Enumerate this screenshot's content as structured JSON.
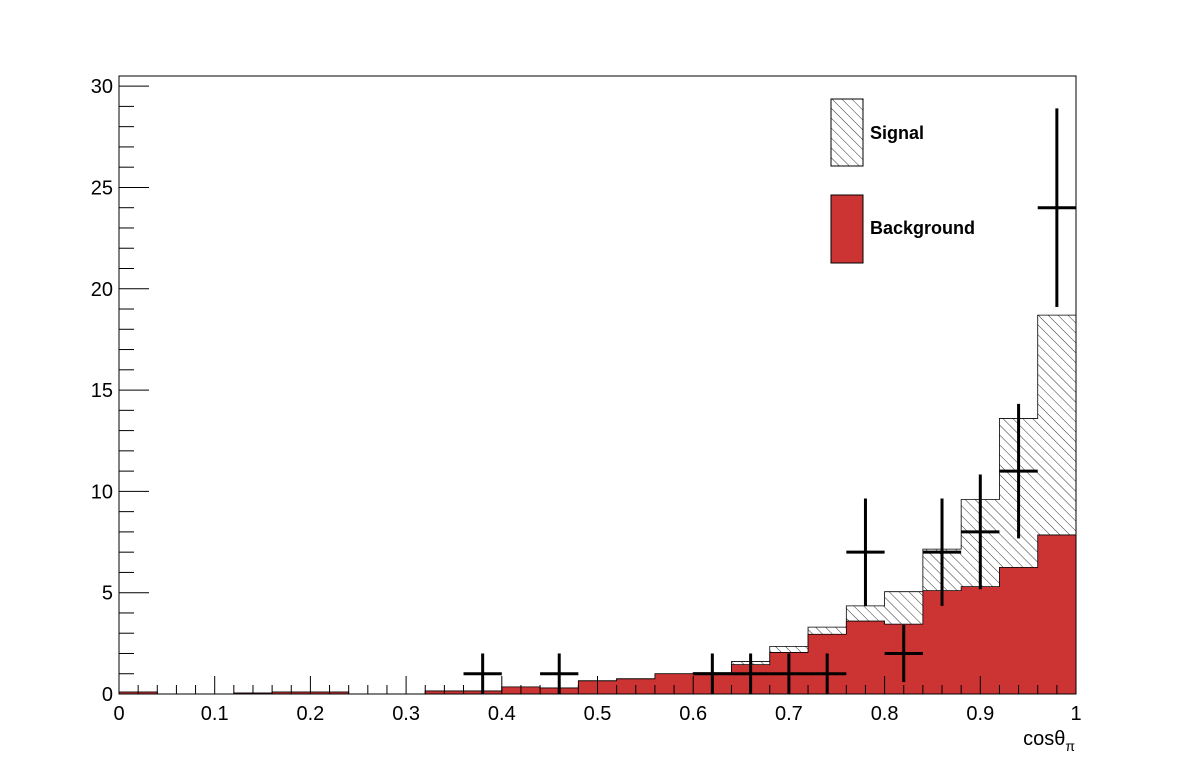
{
  "chart_data": {
    "type": "bar",
    "x_bin_edges": [
      0,
      0.04,
      0.08,
      0.12,
      0.16,
      0.2,
      0.24,
      0.28,
      0.32,
      0.36,
      0.4,
      0.44,
      0.48,
      0.52,
      0.56,
      0.6,
      0.64,
      0.68,
      0.72,
      0.76,
      0.8,
      0.84,
      0.88,
      0.92,
      0.96,
      1.0
    ],
    "series": [
      {
        "name": "Background",
        "style": "filled",
        "values": [
          0.1,
          0,
          0,
          0.05,
          0.1,
          0.1,
          0,
          0,
          0.15,
          0.15,
          0.35,
          0.3,
          0.65,
          0.75,
          1.0,
          1.05,
          1.45,
          2.05,
          2.95,
          3.6,
          3.45,
          5.1,
          5.3,
          6.25,
          7.85
        ]
      },
      {
        "name": "Signal",
        "style": "hatched",
        "values": [
          0,
          0,
          0,
          0,
          0,
          0,
          0,
          0,
          0,
          0,
          0,
          0,
          0,
          0,
          0,
          0,
          0.15,
          0.3,
          0.35,
          0.75,
          1.6,
          2.05,
          4.3,
          7.35,
          10.85
        ]
      }
    ],
    "data_points": [
      {
        "x": 0.38,
        "y": 1,
        "y_err": 1,
        "x_err": 0.02
      },
      {
        "x": 0.46,
        "y": 1,
        "y_err": 1,
        "x_err": 0.02
      },
      {
        "x": 0.62,
        "y": 1,
        "y_err": 1,
        "x_err": 0.02
      },
      {
        "x": 0.66,
        "y": 1,
        "y_err": 1,
        "x_err": 0.02
      },
      {
        "x": 0.7,
        "y": 1,
        "y_err": 1,
        "x_err": 0.02
      },
      {
        "x": 0.74,
        "y": 1,
        "y_err": 1,
        "x_err": 0.02
      },
      {
        "x": 0.78,
        "y": 7,
        "y_err": 2.65,
        "x_err": 0.02
      },
      {
        "x": 0.82,
        "y": 2,
        "y_err": 1.41,
        "x_err": 0.02
      },
      {
        "x": 0.86,
        "y": 7,
        "y_err": 2.65,
        "x_err": 0.02
      },
      {
        "x": 0.9,
        "y": 8,
        "y_err": 2.83,
        "x_err": 0.02
      },
      {
        "x": 0.94,
        "y": 11,
        "y_err": 3.32,
        "x_err": 0.02
      },
      {
        "x": 0.98,
        "y": 24,
        "y_err": 4.9,
        "x_err": 0.02
      }
    ],
    "xlim": [
      0,
      1
    ],
    "ylim": [
      0,
      30.5
    ],
    "x_ticks": [
      "0",
      "0.1",
      "0.2",
      "0.3",
      "0.4",
      "0.5",
      "0.6",
      "0.7",
      "0.8",
      "0.9",
      "1"
    ],
    "y_ticks": [
      "0",
      "5",
      "10",
      "15",
      "20",
      "25",
      "30"
    ],
    "xlabel": "cosθ",
    "xlabel_sub": "π",
    "ylabel": "",
    "title": "",
    "legend": [
      "Signal",
      "Background"
    ],
    "legend_position": "top-right",
    "grid": false,
    "colors": {
      "Background": "#cc3333",
      "Signal": "#ffffff",
      "hatch": "#000000",
      "data": "#000000"
    }
  }
}
